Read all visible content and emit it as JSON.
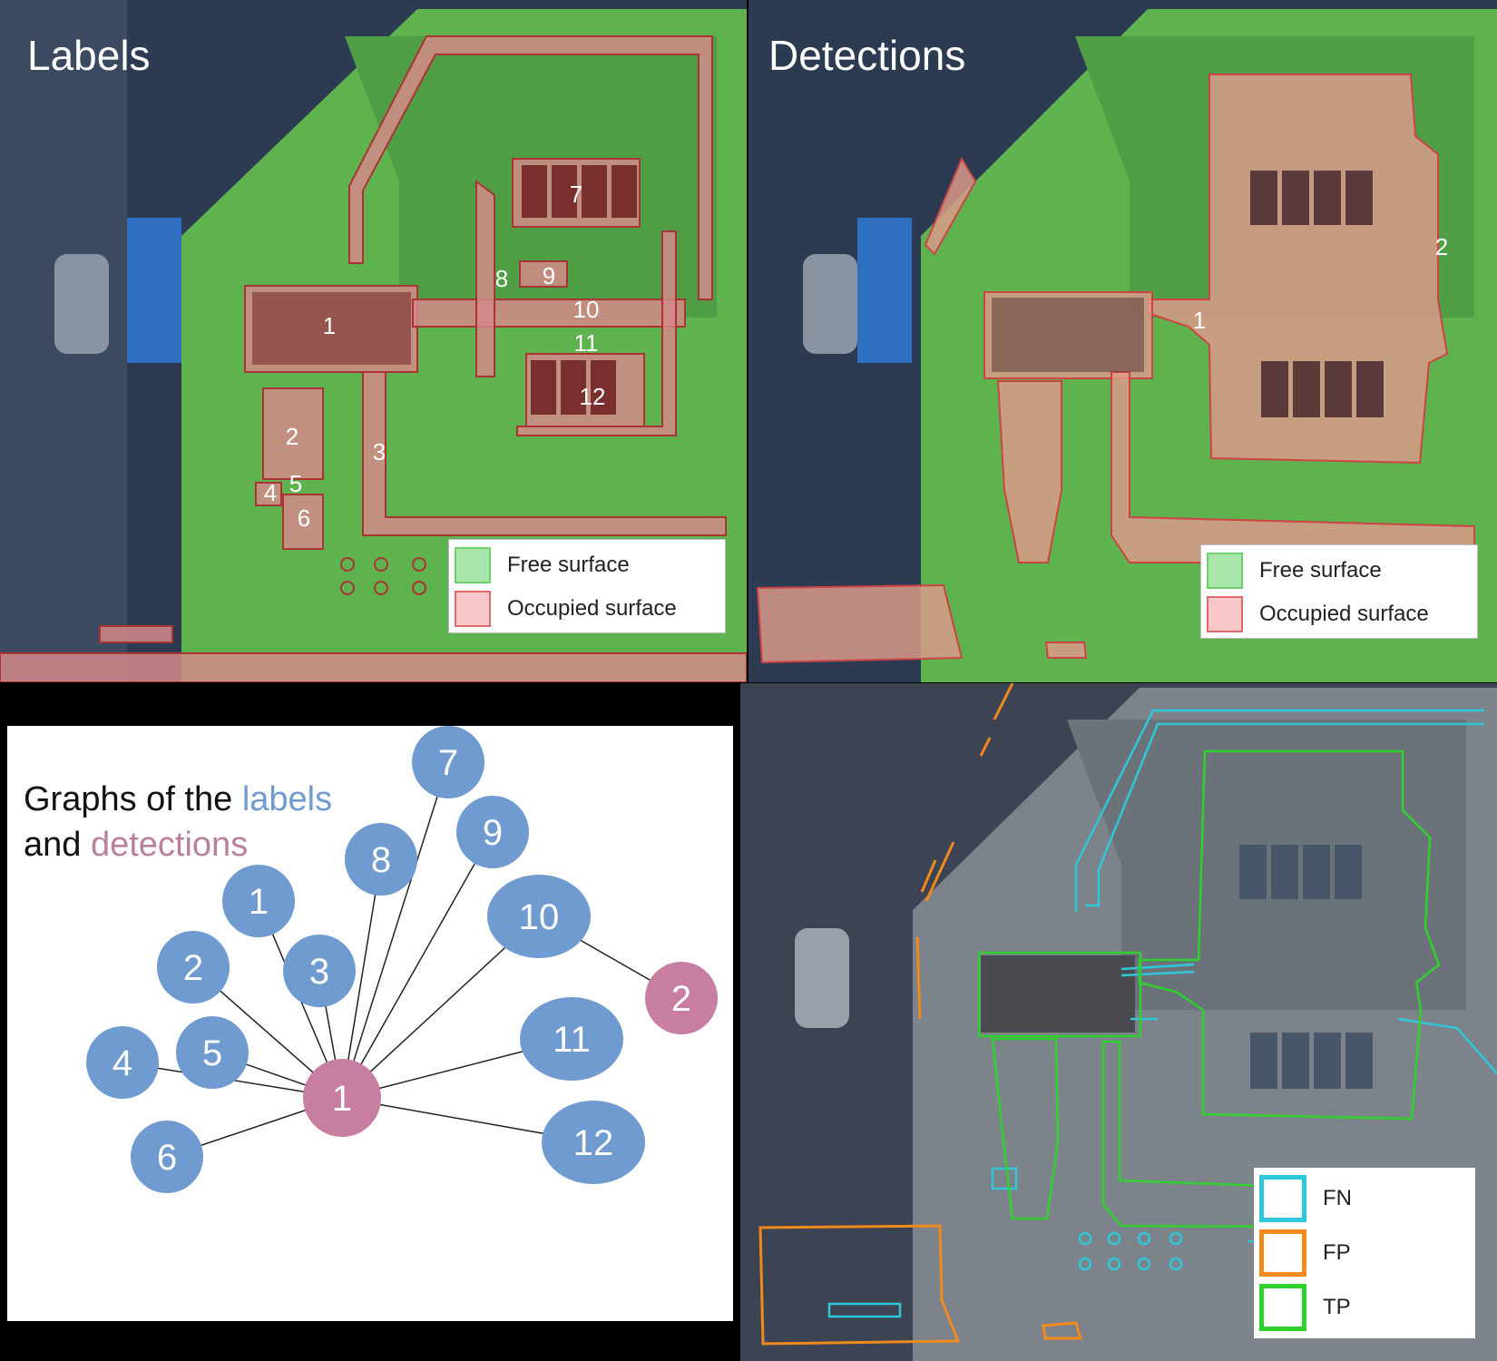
{
  "colors": {
    "free_surface": "#6fcf6f",
    "occupied_surface": "#f4a6a6",
    "label_node": "#6f9bd0",
    "detection_node": "#c77ea0",
    "fn": "#2ec8d8",
    "fp": "#f08a1c",
    "tp": "#2fd12f"
  },
  "labels_panel": {
    "title": "Labels",
    "legend": {
      "free": "Free surface",
      "occupied": "Occupied surface"
    },
    "region_numbers": [
      "1",
      "2",
      "3",
      "4",
      "5",
      "6",
      "7",
      "8",
      "9",
      "10",
      "11",
      "12"
    ]
  },
  "detections_panel": {
    "title": "Detections",
    "legend": {
      "free": "Free surface",
      "occupied": "Occupied surface"
    },
    "region_numbers": [
      "1",
      "2"
    ]
  },
  "graph_panel": {
    "title_part1": "Graphs of the ",
    "title_labels_word": "labels",
    "title_part2": "and ",
    "title_detections_word": "detections",
    "label_nodes": [
      "1",
      "2",
      "3",
      "4",
      "5",
      "6",
      "7",
      "8",
      "9",
      "10",
      "11",
      "12"
    ],
    "detection_nodes": [
      "1",
      "2"
    ],
    "edges": [
      [
        "L1",
        "D1"
      ],
      [
        "L2",
        "D1"
      ],
      [
        "L3",
        "D1"
      ],
      [
        "L4",
        "D1"
      ],
      [
        "L5",
        "D1"
      ],
      [
        "L6",
        "D1"
      ],
      [
        "L7",
        "D1"
      ],
      [
        "L8",
        "D1"
      ],
      [
        "L9",
        "D1"
      ],
      [
        "L10",
        "D1"
      ],
      [
        "L11",
        "D1"
      ],
      [
        "L12",
        "D1"
      ],
      [
        "L10",
        "D2"
      ]
    ]
  },
  "evaluation_panel": {
    "legend": {
      "fn": "FN",
      "fp": "FP",
      "tp": "TP"
    }
  }
}
